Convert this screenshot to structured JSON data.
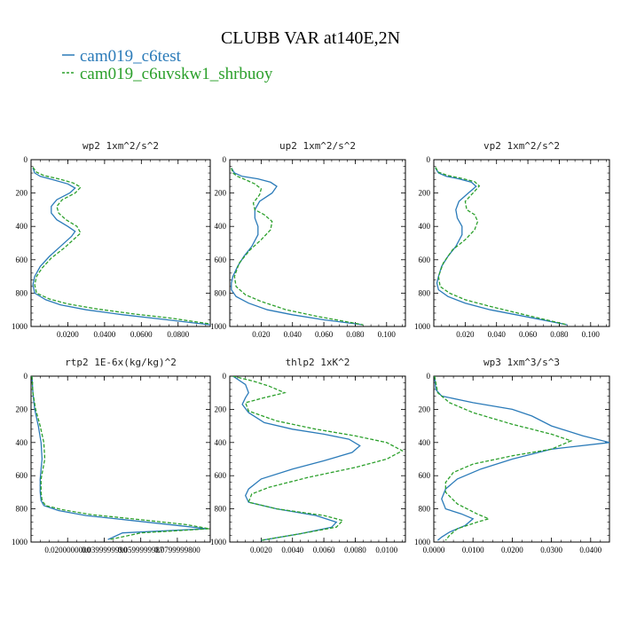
{
  "chart_data": {
    "title": "CLUBB VAR at140E,2N",
    "legend": {
      "placement": "top-left",
      "entries": [
        {
          "name": "cam019_c6test",
          "color": "#2b7bb9",
          "dash": "solid"
        },
        {
          "name": "cam019_c6uvskw1_shrbuoy",
          "color": "#2ca02c",
          "dash": "dashed"
        }
      ]
    },
    "panels": [
      {
        "type": "line",
        "title": "wp2  1xm^2/s^2",
        "xlim": [
          0,
          0.0975
        ],
        "ylim": [
          1000,
          0
        ],
        "xticks": [
          {
            "v": 0.02,
            "label": "0.0200"
          },
          {
            "v": 0.04,
            "label": "0.0400"
          },
          {
            "v": 0.06,
            "label": "0.0600"
          },
          {
            "v": 0.08,
            "label": "0.0800"
          }
        ],
        "yticks": [
          0,
          200,
          400,
          600,
          800,
          1000
        ],
        "series": [
          {
            "name": "cam019_c6test",
            "x": [
              0.001,
              0.002,
              0.005,
              0.012,
              0.02,
              0.024,
              0.021,
              0.014,
              0.011,
              0.011,
              0.014,
              0.02,
              0.024,
              0.022,
              0.016,
              0.01,
              0.005,
              0.002,
              0.001,
              0.002,
              0.008,
              0.016,
              0.03,
              0.05,
              0.07,
              0.0975
            ],
            "y": [
              50,
              80,
              100,
              120,
              145,
              170,
              200,
              240,
              280,
              320,
              360,
              400,
              430,
              460,
              520,
              580,
              640,
              700,
              750,
              800,
              840,
              870,
              900,
              930,
              955,
              990
            ]
          },
          {
            "name": "cam019_c6uvskw1_shrbuoy",
            "x": [
              0.001,
              0.003,
              0.007,
              0.015,
              0.023,
              0.027,
              0.024,
              0.017,
              0.014,
              0.015,
              0.019,
              0.025,
              0.027,
              0.024,
              0.018,
              0.011,
              0.006,
              0.003,
              0.002,
              0.003,
              0.01,
              0.02,
              0.036,
              0.056,
              0.076,
              0.0975
            ],
            "y": [
              45,
              75,
              95,
              115,
              140,
              165,
              200,
              240,
              280,
              320,
              360,
              400,
              440,
              470,
              530,
              590,
              650,
              700,
              750,
              800,
              835,
              865,
              895,
              925,
              950,
              985
            ]
          }
        ]
      },
      {
        "type": "line",
        "title": "up2  1xm^2/s^2",
        "xlim": [
          0,
          0.112
        ],
        "ylim": [
          1000,
          0
        ],
        "xticks": [
          {
            "v": 0.02,
            "label": "0.020"
          },
          {
            "v": 0.04,
            "label": "0.040"
          },
          {
            "v": 0.06,
            "label": "0.060"
          },
          {
            "v": 0.08,
            "label": "0.080"
          },
          {
            "v": 0.1,
            "label": "0.100"
          }
        ],
        "yticks": [
          0,
          200,
          400,
          600,
          800,
          1000
        ],
        "series": [
          {
            "name": "cam019_c6test",
            "x": [
              0.001,
              0.003,
              0.008,
              0.018,
              0.026,
              0.03,
              0.027,
              0.019,
              0.016,
              0.016,
              0.018,
              0.018,
              0.014,
              0.009,
              0.005,
              0.002,
              0.001,
              0.001,
              0.004,
              0.012,
              0.024,
              0.04,
              0.06,
              0.085
            ],
            "y": [
              50,
              80,
              100,
              115,
              135,
              160,
              200,
              250,
              300,
              350,
              400,
              450,
              520,
              580,
              640,
              700,
              740,
              780,
              820,
              860,
              900,
              930,
              960,
              990
            ]
          },
          {
            "name": "cam019_c6uvskw1_shrbuoy",
            "x": [
              0.001,
              0.002,
              0.005,
              0.01,
              0.016,
              0.02,
              0.019,
              0.015,
              0.016,
              0.022,
              0.027,
              0.026,
              0.02,
              0.013,
              0.006,
              0.003,
              0.004,
              0.01,
              0.02,
              0.036,
              0.056,
              0.085
            ],
            "y": [
              50,
              80,
              100,
              120,
              145,
              175,
              210,
              260,
              300,
              330,
              370,
              420,
              480,
              540,
              620,
              700,
              760,
              810,
              850,
              900,
              940,
              990
            ]
          }
        ]
      },
      {
        "type": "line",
        "title": "vp2  1xm^2/s^2",
        "xlim": [
          0,
          0.112
        ],
        "ylim": [
          1000,
          0
        ],
        "xticks": [
          {
            "v": 0.02,
            "label": "0.020"
          },
          {
            "v": 0.04,
            "label": "0.040"
          },
          {
            "v": 0.06,
            "label": "0.060"
          },
          {
            "v": 0.08,
            "label": "0.080"
          },
          {
            "v": 0.1,
            "label": "0.100"
          }
        ],
        "yticks": [
          0,
          200,
          400,
          600,
          800,
          1000
        ],
        "series": [
          {
            "name": "cam019_c6test",
            "x": [
              0.001,
              0.003,
              0.008,
              0.016,
              0.024,
              0.027,
              0.022,
              0.016,
              0.014,
              0.015,
              0.018,
              0.018,
              0.014,
              0.009,
              0.005,
              0.003,
              0.002,
              0.003,
              0.009,
              0.02,
              0.036,
              0.058,
              0.085
            ],
            "y": [
              50,
              80,
              100,
              115,
              135,
              160,
              200,
              250,
              300,
              350,
              400,
              450,
              520,
              580,
              640,
              700,
              740,
              780,
              820,
              860,
              900,
              940,
              990
            ]
          },
          {
            "name": "cam019_c6uvskw1_shrbuoy",
            "x": [
              0.001,
              0.003,
              0.009,
              0.018,
              0.026,
              0.029,
              0.025,
              0.02,
              0.021,
              0.026,
              0.028,
              0.026,
              0.02,
              0.012,
              0.006,
              0.003,
              0.004,
              0.01,
              0.02,
              0.036,
              0.058,
              0.085
            ],
            "y": [
              45,
              75,
              95,
              112,
              132,
              158,
              200,
              250,
              300,
              330,
              370,
              420,
              480,
              540,
              620,
              700,
              760,
              800,
              840,
              880,
              930,
              990
            ]
          }
        ]
      },
      {
        "type": "line",
        "title": "rtp2  1E-6x(kg/kg)^2",
        "xlim": [
          0,
          9.8e-05
        ],
        "ylim": [
          1000,
          0
        ],
        "xticks": [
          {
            "v": 2e-05,
            "label": "0.0200000000"
          },
          {
            "v": 4e-05,
            "label": "0.0399999990"
          },
          {
            "v": 6e-05,
            "label": "0.0599999987"
          },
          {
            "v": 8e-05,
            "label": "0.0799999800"
          }
        ],
        "yticks": [
          0,
          200,
          400,
          600,
          800,
          1000
        ],
        "series": [
          {
            "name": "cam019_c6test",
            "x": [
              5e-07,
              1e-06,
              2e-06,
              4e-06,
              5.5e-06,
              6e-06,
              5.5e-06,
              5e-06,
              5e-06,
              5.5e-06,
              7e-06,
              1.5e-05,
              3e-05,
              5.5e-05,
              8e-05,
              9.6e-05,
              5e-05,
              4.2e-05
            ],
            "y": [
              0,
              100,
              200,
              300,
              400,
              500,
              560,
              620,
              700,
              750,
              780,
              810,
              840,
              870,
              900,
              920,
              945,
              985
            ]
          },
          {
            "name": "cam019_c6uvskw1_shrbuoy",
            "x": [
              5e-07,
              1e-06,
              2.5e-06,
              5e-06,
              7e-06,
              7.5e-06,
              6.5e-06,
              5.5e-06,
              5.5e-06,
              6e-06,
              8e-06,
              1.7e-05,
              3.3e-05,
              6e-05,
              8.5e-05,
              9.75e-05,
              6e-05,
              4.3e-05
            ],
            "y": [
              0,
              100,
              200,
              300,
              400,
              500,
              560,
              620,
              700,
              750,
              780,
              805,
              835,
              865,
              895,
              920,
              945,
              985
            ]
          }
        ]
      },
      {
        "type": "line",
        "title": "thlp2  1xK^2",
        "xlim": [
          0,
          0.0112
        ],
        "ylim": [
          1000,
          0
        ],
        "xticks": [
          {
            "v": 0.002,
            "label": "0.0020"
          },
          {
            "v": 0.004,
            "label": "0.0040"
          },
          {
            "v": 0.006,
            "label": "0.0060"
          },
          {
            "v": 0.008,
            "label": "0.0080"
          },
          {
            "v": 0.01,
            "label": "0.0100"
          }
        ],
        "yticks": [
          0,
          200,
          400,
          600,
          800,
          1000
        ],
        "series": [
          {
            "name": "cam019_c6test",
            "x": [
              0.0002,
              0.001,
              0.0012,
              0.001,
              0.0008,
              0.0012,
              0.0022,
              0.004,
              0.006,
              0.0076,
              0.0083,
              0.0078,
              0.006,
              0.004,
              0.002,
              0.0012,
              0.001,
              0.0012,
              0.003,
              0.0055,
              0.0068,
              0.0065,
              0.0045,
              0.002
            ],
            "y": [
              0,
              50,
              100,
              130,
              170,
              220,
              280,
              320,
              350,
              380,
              420,
              460,
              510,
              560,
              620,
              680,
              720,
              760,
              800,
              840,
              880,
              910,
              950,
              990
            ]
          },
          {
            "name": "cam019_c6uvskw1_shrbuoy",
            "x": [
              0.0002,
              0.0015,
              0.0025,
              0.0035,
              0.0022,
              0.001,
              0.0012,
              0.003,
              0.0055,
              0.008,
              0.01,
              0.011,
              0.01,
              0.008,
              0.005,
              0.0025,
              0.0014,
              0.0012,
              0.003,
              0.006,
              0.0072,
              0.0068,
              0.0045,
              0.002
            ],
            "y": [
              0,
              30,
              60,
              100,
              130,
              160,
              210,
              270,
              320,
              360,
              400,
              450,
              500,
              550,
              610,
              670,
              710,
              760,
              800,
              840,
              870,
              910,
              950,
              990
            ]
          }
        ]
      },
      {
        "type": "line",
        "title": "wp3  1xm^3/s^3",
        "xlim": [
          0,
          0.0448
        ],
        "ylim": [
          1000,
          0
        ],
        "xticks": [
          {
            "v": 0.0,
            "label": "0.0000"
          },
          {
            "v": 0.01,
            "label": "0.0100"
          },
          {
            "v": 0.02,
            "label": "0.0200"
          },
          {
            "v": 0.03,
            "label": "0.0300"
          },
          {
            "v": 0.04,
            "label": "0.0400"
          }
        ],
        "yticks": [
          0,
          200,
          400,
          600,
          800,
          1000
        ],
        "series": [
          {
            "name": "cam019_c6test",
            "x": [
              0.0002,
              0.0005,
              0.002,
              0.01,
              0.02,
              0.025,
              0.03,
              0.038,
              0.0448,
              0.03,
              0.02,
              0.012,
              0.006,
              0.003,
              0.002,
              0.003,
              0.007,
              0.01,
              0.008,
              0.004,
              0.002,
              0.001
            ],
            "y": [
              0,
              80,
              120,
              160,
              200,
              240,
              300,
              360,
              400,
              440,
              500,
              560,
              620,
              680,
              740,
              800,
              830,
              860,
              900,
              940,
              970,
              990
            ]
          },
          {
            "name": "cam019_c6uvskw1_shrbuoy",
            "x": [
              0.0002,
              0.001,
              0.004,
              0.01,
              0.02,
              0.03,
              0.035,
              0.03,
              0.02,
              0.01,
              0.005,
              0.003,
              0.003,
              0.006,
              0.011,
              0.014,
              0.011,
              0.006,
              0.004,
              0.003
            ],
            "y": [
              0,
              100,
              160,
              220,
              290,
              350,
              390,
              440,
              480,
              530,
              580,
              640,
              700,
              770,
              830,
              860,
              880,
              920,
              960,
              990
            ]
          }
        ]
      }
    ]
  }
}
